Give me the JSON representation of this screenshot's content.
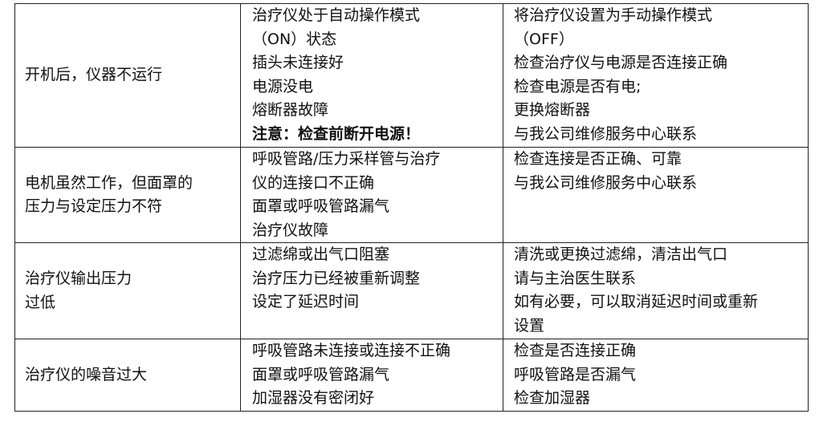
{
  "table": {
    "rows": [
      [
        [
          "开机后，仪器不运行"
        ],
        [
          "治疗仪处于自动操作模式",
          "（ON）状态",
          "插头未连接好",
          "电源没电",
          "熔断器故障",
          "注意：检查前断开电源！"
        ],
        [
          "将治疗仪设置为手动操作模式",
          "（OFF）",
          "检查治疗仪与电源是否连接正确",
          "检查电源是否有电;",
          "更换熔断器",
          "与我公司维修服务中心联系"
        ]
      ],
      [
        [
          "电机虽然工作，但面罩的",
          "压力与设定压力不符"
        ],
        [
          "呼吸管路/压力采样管与治疗",
          "仪的连接口不正确",
          "面罩或呼吸管路漏气",
          "治疗仪故障"
        ],
        [
          "检查连接是否正确、可靠",
          "与我公司维修服务中心联系"
        ]
      ],
      [
        [
          "治疗仪输出压力",
          "过低"
        ],
        [
          "过滤绵或出气口阻塞",
          "治疗压力已经被重新调整",
          "设定了延迟时间"
        ],
        [
          "清洗或更换过滤绵，清洁出气口",
          "请与主治医生联系",
          "如有必要，可以取消延迟时间或重新",
          "设置"
        ]
      ],
      [
        [
          "治疗仪的噪音过大"
        ],
        [
          "呼吸管路未连接或连接不正确",
          "面罩或呼吸管路漏气",
          "加湿器没有密闭好"
        ],
        [
          "检查是否连接正确",
          "呼吸管路是否漏气",
          "检查加湿器"
        ]
      ]
    ]
  }
}
